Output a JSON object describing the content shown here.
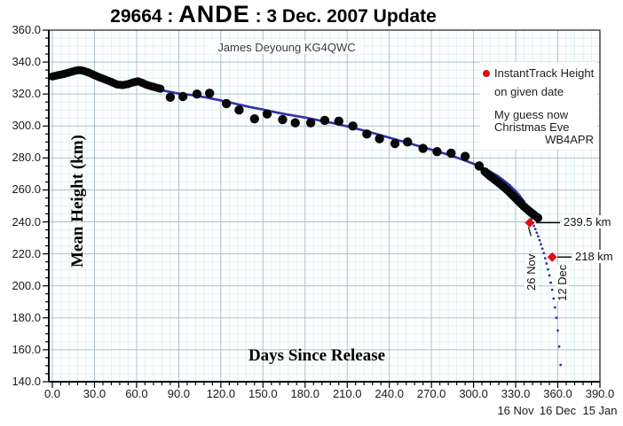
{
  "title": {
    "prefix": "29664 : ",
    "satellite": "ANDE",
    "suffix": " : 3 Dec. 2007 Update"
  },
  "annotations": {
    "credit": "James Deyoung KG4QWC",
    "marker1_label": "239.5 km",
    "marker1_date": "26 Nov",
    "marker2_label": "218 km",
    "marker2_date": "12 Dec"
  },
  "legend": {
    "line1": "InstantTrack Height",
    "line2": "on given date",
    "guess1": "My guess now",
    "guess2": "Christmas Eve",
    "callsign": "WB4APR"
  },
  "axes": {
    "x_label": "Days Since Release",
    "y_label": "Mean Height (km)",
    "x_range": [
      0,
      390
    ],
    "y_range": [
      140,
      360
    ],
    "x_major_step": 30,
    "x_minor_step": 6,
    "y_major_step": 20,
    "y_minor_step": 5,
    "x_ticks": [
      "0.0",
      "30.0",
      "60.0",
      "90.0",
      "120.0",
      "150.0",
      "180.0",
      "210.0",
      "240.0",
      "270.0",
      "300.0",
      "330.0",
      "360.0",
      "390.0"
    ],
    "y_ticks": [
      "360.0",
      "340.0",
      "320.0",
      "300.0",
      "280.0",
      "260.0",
      "240.0",
      "220.0",
      "200.0",
      "180.0",
      "160.0",
      "140.0"
    ],
    "x_dates": [
      {
        "day": 330,
        "label": "16 Nov"
      },
      {
        "day": 360,
        "label": "16 Dec"
      },
      {
        "day": 390,
        "label": "15 Jan"
      }
    ]
  },
  "colors": {
    "curve": "#3232aa",
    "dots": "#070707",
    "marker": "#dd1010",
    "grid_minor": "#def1f1",
    "grid_major": "#a9c2cc",
    "frame": "#1a1a1a"
  },
  "chart_data": {
    "type": "scatter",
    "title": "29664 : ANDE : 3 Dec. 2007 Update",
    "xlabel": "Days Since Release",
    "ylabel": "Mean Height (km)",
    "xlim": [
      0,
      390
    ],
    "ylim": [
      140,
      360
    ],
    "grid": true,
    "legend_position": "top-right",
    "series": [
      {
        "name": "observed-mean-height-dense-early",
        "style": "thick-dot-band",
        "points": [
          [
            0,
            331
          ],
          [
            4,
            331.8
          ],
          [
            8,
            332.5
          ],
          [
            12,
            333.5
          ],
          [
            16,
            334.5
          ],
          [
            19,
            335
          ],
          [
            22,
            334.6
          ],
          [
            26,
            333.4
          ],
          [
            30,
            331.8
          ],
          [
            34,
            330.3
          ],
          [
            38,
            329
          ],
          [
            42,
            327.6
          ],
          [
            46,
            326
          ],
          [
            50,
            325.6
          ],
          [
            54,
            326.3
          ],
          [
            58,
            327.4
          ],
          [
            61,
            328
          ],
          [
            64,
            327
          ],
          [
            67,
            325.8
          ],
          [
            70,
            325
          ],
          [
            73,
            324.3
          ],
          [
            77,
            323.3
          ]
        ]
      },
      {
        "name": "observed-mean-height-sparse",
        "style": "dots",
        "points": [
          [
            84,
            318
          ],
          [
            93,
            318.5
          ],
          [
            103,
            320
          ],
          [
            112,
            320.5
          ],
          [
            124,
            314
          ],
          [
            133,
            310
          ],
          [
            144,
            304.5
          ],
          [
            153,
            307.5
          ],
          [
            164,
            304
          ],
          [
            173,
            302
          ],
          [
            184,
            302
          ],
          [
            194,
            303.5
          ],
          [
            204,
            303
          ],
          [
            214,
            300
          ],
          [
            224,
            295
          ],
          [
            233,
            292
          ],
          [
            244,
            289
          ],
          [
            253,
            290
          ],
          [
            264,
            286
          ],
          [
            274,
            284
          ],
          [
            284,
            283
          ],
          [
            294,
            281
          ],
          [
            304,
            275
          ]
        ]
      },
      {
        "name": "observed-mean-height-dense-late",
        "style": "thick-dot-band",
        "points": [
          [
            308,
            271.5
          ],
          [
            312,
            268.5
          ],
          [
            316,
            265.8
          ],
          [
            320,
            263
          ],
          [
            324,
            260
          ],
          [
            328,
            256.5
          ],
          [
            332,
            253
          ],
          [
            336,
            249.5
          ],
          [
            340,
            246.5
          ],
          [
            343,
            244.5
          ],
          [
            346,
            242.5
          ]
        ]
      },
      {
        "name": "predicted-decay-curve",
        "style": "dotted-line",
        "points": [
          [
            0,
            331.5
          ],
          [
            10,
            333
          ],
          [
            18,
            334
          ],
          [
            24,
            333
          ],
          [
            30,
            331.3
          ],
          [
            36,
            329.6
          ],
          [
            42,
            328
          ],
          [
            48,
            327.2
          ],
          [
            54,
            326.8
          ],
          [
            60,
            326.5
          ],
          [
            66,
            325.5
          ],
          [
            72,
            324
          ],
          [
            80,
            322
          ],
          [
            90,
            320.3
          ],
          [
            100,
            319.3
          ],
          [
            110,
            317.8
          ],
          [
            120,
            316
          ],
          [
            130,
            314
          ],
          [
            140,
            312
          ],
          [
            150,
            310.3
          ],
          [
            160,
            308.4
          ],
          [
            170,
            306.8
          ],
          [
            180,
            305.3
          ],
          [
            190,
            303.5
          ],
          [
            200,
            301.8
          ],
          [
            210,
            299.8
          ],
          [
            220,
            297.6
          ],
          [
            230,
            295.2
          ],
          [
            240,
            292.7
          ],
          [
            250,
            290.2
          ],
          [
            260,
            287.7
          ],
          [
            270,
            285.2
          ],
          [
            280,
            282.6
          ],
          [
            290,
            279.7
          ],
          [
            300,
            276.4
          ],
          [
            310,
            272.4
          ],
          [
            318,
            268.3
          ],
          [
            326,
            262.8
          ],
          [
            332,
            257.5
          ],
          [
            336,
            252.8
          ],
          [
            338,
            248.5
          ],
          [
            340,
            244
          ],
          [
            342,
            239.5
          ],
          [
            344,
            235.5
          ],
          [
            346,
            231
          ],
          [
            348,
            226
          ],
          [
            350,
            220.5
          ],
          [
            352,
            214
          ],
          [
            354,
            206.5
          ],
          [
            356,
            197.5
          ],
          [
            358,
            186.5
          ],
          [
            359,
            180
          ],
          [
            360,
            172
          ],
          [
            361,
            162
          ],
          [
            362,
            150.5
          ]
        ]
      },
      {
        "name": "instanttrack-markers",
        "style": "red-diamonds",
        "points": [
          [
            340,
            239.5
          ],
          [
            356,
            218
          ]
        ]
      }
    ]
  }
}
